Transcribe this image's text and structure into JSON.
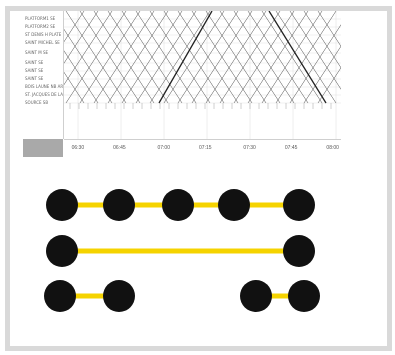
{
  "chart": {
    "station_labels": [
      "PLATFORM1 SE",
      "PLATFORM2 SE",
      "ST DENIS H PLATE",
      "SAINT MICHEL SE",
      "SAINT M SE",
      "SAINT SE",
      "SAINT SE",
      "SAINT SE",
      "BOIS LAUNE NB ARCL",
      "ST. JACQUES DE LA",
      "SOURCE SB"
    ],
    "time_labels": [
      "06:30",
      "06:45",
      "07:00",
      "07:15",
      "07:30",
      "07:45",
      "08:00"
    ]
  },
  "colors": {
    "connector": "#f5d300",
    "node": "#111111",
    "frame": "#d9d9d9"
  }
}
